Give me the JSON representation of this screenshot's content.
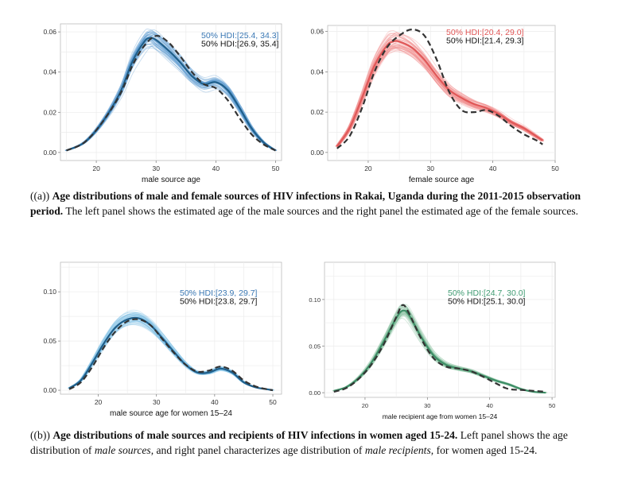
{
  "chart_data": [
    {
      "type": "line",
      "panel": "a-left",
      "xlabel": "male source age",
      "xlim": [
        14,
        51
      ],
      "ylim": [
        -0.004,
        0.064
      ],
      "xticks": [
        20,
        30,
        40,
        50
      ],
      "yticks": [
        0.0,
        0.02,
        0.04,
        0.06
      ],
      "ytick_labels": [
        "0.00",
        "0.02",
        "0.04",
        "0.06"
      ],
      "annotations": [
        "50% HDI:[25.4, 34.3]",
        "50% HDI:[26.9, 35.4]"
      ],
      "colors": {
        "posterior": "#5b9bd1",
        "mean": "#1f5f8b",
        "empirical": "#333333",
        "ann1": "#3a78b4",
        "ann2": "#111111"
      },
      "series": [
        {
          "x": [
            15,
            18,
            21,
            24,
            26,
            28,
            29,
            30,
            32,
            34,
            36,
            38,
            40,
            42,
            44,
            46,
            48,
            50
          ],
          "y": [
            0.001,
            0.005,
            0.015,
            0.03,
            0.045,
            0.055,
            0.057,
            0.056,
            0.051,
            0.045,
            0.038,
            0.034,
            0.035,
            0.031,
            0.022,
            0.012,
            0.005,
            0.001
          ]
        },
        {
          "x": [
            15,
            18,
            21,
            24,
            26,
            28,
            30,
            32,
            34,
            36,
            38,
            40,
            42,
            44,
            46,
            48,
            50
          ],
          "y": [
            0.001,
            0.005,
            0.015,
            0.029,
            0.043,
            0.053,
            0.058,
            0.055,
            0.048,
            0.04,
            0.034,
            0.032,
            0.026,
            0.017,
            0.009,
            0.004,
            0.001
          ]
        }
      ]
    },
    {
      "type": "line",
      "panel": "a-right",
      "xlabel": "female source age",
      "xlim": [
        13.5,
        50
      ],
      "ylim": [
        -0.004,
        0.063
      ],
      "xticks": [
        20,
        30,
        40,
        50
      ],
      "yticks": [
        0.0,
        0.02,
        0.04,
        0.06
      ],
      "ytick_labels": [
        "0.00",
        "0.02",
        "0.04",
        "0.06"
      ],
      "annotations": [
        "50% HDI:[20.4, 29.0]",
        "50% HDI:[21.4, 29.3]"
      ],
      "colors": {
        "posterior": "#f08a8a",
        "mean": "#e05858",
        "empirical": "#333333",
        "ann1": "#e05555",
        "ann2": "#111111"
      },
      "series": [
        {
          "x": [
            15,
            17,
            19,
            21,
            23,
            24,
            25,
            27,
            29,
            31,
            33,
            35,
            37,
            39,
            41,
            43,
            45,
            47,
            48
          ],
          "y": [
            0.003,
            0.012,
            0.027,
            0.043,
            0.053,
            0.055,
            0.055,
            0.052,
            0.046,
            0.038,
            0.031,
            0.027,
            0.024,
            0.022,
            0.019,
            0.015,
            0.012,
            0.008,
            0.006
          ]
        },
        {
          "x": [
            15,
            17,
            19,
            21,
            23,
            25,
            27,
            29,
            31,
            33,
            35,
            37,
            39,
            41,
            43,
            45,
            47,
            48
          ],
          "y": [
            0.002,
            0.008,
            0.022,
            0.04,
            0.052,
            0.058,
            0.061,
            0.058,
            0.046,
            0.03,
            0.021,
            0.02,
            0.021,
            0.018,
            0.013,
            0.009,
            0.006,
            0.004
          ]
        }
      ]
    },
    {
      "type": "line",
      "panel": "b-left",
      "xlabel": "male source age for women 15–24",
      "xlim": [
        13.5,
        51.5
      ],
      "ylim": [
        -0.004,
        0.13
      ],
      "xticks": [
        20,
        30,
        40,
        50
      ],
      "yticks": [
        0.0,
        0.05,
        0.1
      ],
      "ytick_labels": [
        "0.00",
        "0.05",
        "0.10"
      ],
      "annotations": [
        "50% HDI:[23.9, 29.7]",
        "50% HDI:[23.8, 29.7]"
      ],
      "colors": {
        "posterior": "#7fc0e6",
        "mean": "#1f5f8b",
        "empirical": "#333333",
        "ann1": "#3a78b4",
        "ann2": "#111111"
      },
      "series": [
        {
          "x": [
            15,
            17,
            19,
            21,
            23,
            25,
            27,
            29,
            31,
            33,
            35,
            37,
            39,
            41,
            43,
            45,
            47,
            49,
            50
          ],
          "y": [
            0.002,
            0.01,
            0.028,
            0.048,
            0.064,
            0.072,
            0.073,
            0.066,
            0.053,
            0.039,
            0.026,
            0.018,
            0.018,
            0.022,
            0.018,
            0.008,
            0.003,
            0.001,
            0.0
          ]
        },
        {
          "x": [
            15,
            17,
            19,
            21,
            23,
            25,
            27,
            29,
            31,
            33,
            35,
            37,
            39,
            41,
            43,
            45,
            47,
            49,
            50
          ],
          "y": [
            0.001,
            0.008,
            0.024,
            0.044,
            0.06,
            0.07,
            0.072,
            0.066,
            0.052,
            0.038,
            0.026,
            0.019,
            0.02,
            0.024,
            0.02,
            0.01,
            0.004,
            0.001,
            0.0
          ]
        }
      ]
    },
    {
      "type": "line",
      "panel": "b-right",
      "xlabel": "male recipient age from women 15–24",
      "xlim": [
        13.5,
        50.5
      ],
      "ylim": [
        -0.005,
        0.14
      ],
      "xticks": [
        20,
        30,
        40,
        50
      ],
      "yticks": [
        0.0,
        0.05,
        0.1
      ],
      "ytick_labels": [
        "0.00",
        "0.05",
        "0.10"
      ],
      "annotations": [
        "50% HDI:[24.7, 30.0]",
        "50% HDI:[25.1, 30.0]"
      ],
      "colors": {
        "posterior": "#8cc4a4",
        "mean": "#3d8e66",
        "empirical": "#333333",
        "ann1": "#3f9b72",
        "ann2": "#111111"
      },
      "series": [
        {
          "x": [
            15,
            17,
            19,
            21,
            23,
            25,
            26,
            27,
            29,
            31,
            33,
            35,
            37,
            39,
            41,
            43,
            45,
            47,
            49
          ],
          "y": [
            0.002,
            0.006,
            0.016,
            0.032,
            0.055,
            0.08,
            0.088,
            0.084,
            0.06,
            0.04,
            0.03,
            0.026,
            0.023,
            0.018,
            0.013,
            0.009,
            0.004,
            0.001,
            0.0
          ]
        },
        {
          "x": [
            15,
            17,
            19,
            21,
            23,
            25,
            26,
            27,
            29,
            31,
            33,
            35,
            37,
            39,
            41,
            43,
            45,
            47,
            49
          ],
          "y": [
            0.001,
            0.005,
            0.015,
            0.03,
            0.052,
            0.081,
            0.094,
            0.086,
            0.058,
            0.037,
            0.028,
            0.026,
            0.023,
            0.017,
            0.01,
            0.004,
            0.003,
            0.002,
            0.001
          ]
        }
      ]
    }
  ],
  "caption_a": {
    "lead": "((a))",
    "bold": "Age distributions of male and female sources of HIV infections in Rakai, Uganda during the 2011-2015 observation period.",
    "rest": "The left panel shows the estimated age of the male sources and the right panel the estimated age of the female sources."
  },
  "caption_b": {
    "lead": "((b))",
    "bold": "Age distributions of male sources and recipients of HIV infections in women aged 15-24.",
    "t1": "Left panel shows the age distribution of",
    "i1": "male sources",
    "t2": ", and right panel characterizes age distribution of",
    "i2": "male recipients",
    "t3": ", for women aged 15-24."
  }
}
